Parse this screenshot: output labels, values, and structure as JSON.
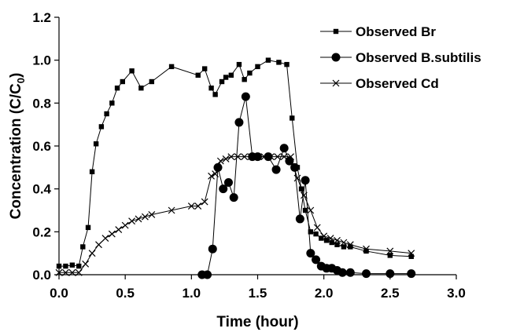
{
  "chart_data": {
    "type": "line",
    "title": "",
    "xlabel": "Time (hour)",
    "ylabel_main": "Concentration (C/C",
    "ylabel_sub": "0",
    "ylabel_end": ")",
    "xlim": [
      0.0,
      3.0
    ],
    "ylim": [
      0.0,
      1.2
    ],
    "xticks": [
      "0.0",
      "0.5",
      "1.0",
      "1.5",
      "2.0",
      "2.5",
      "3.0"
    ],
    "yticks": [
      "0.0",
      "0.2",
      "0.4",
      "0.6",
      "0.8",
      "1.0",
      "1.2"
    ],
    "legend_placement": "top-right",
    "series": [
      {
        "name": "Observed Br",
        "marker": "square",
        "x": [
          0.0,
          0.05,
          0.1,
          0.15,
          0.18,
          0.22,
          0.25,
          0.28,
          0.32,
          0.36,
          0.4,
          0.44,
          0.48,
          0.55,
          0.62,
          0.7,
          0.85,
          1.05,
          1.1,
          1.15,
          1.18,
          1.23,
          1.26,
          1.3,
          1.36,
          1.4,
          1.44,
          1.5,
          1.58,
          1.66,
          1.72,
          1.76,
          1.8,
          1.83,
          1.86,
          1.9,
          1.94,
          1.98,
          2.02,
          2.06,
          2.1,
          2.15,
          2.2,
          2.32,
          2.5,
          2.66
        ],
        "y": [
          0.04,
          0.04,
          0.045,
          0.04,
          0.13,
          0.22,
          0.48,
          0.61,
          0.69,
          0.75,
          0.8,
          0.87,
          0.9,
          0.95,
          0.87,
          0.9,
          0.97,
          0.93,
          0.96,
          0.87,
          0.84,
          0.9,
          0.92,
          0.93,
          0.98,
          0.91,
          0.94,
          0.97,
          1.0,
          0.99,
          0.98,
          0.73,
          0.5,
          0.4,
          0.3,
          0.2,
          0.19,
          0.17,
          0.16,
          0.15,
          0.14,
          0.13,
          0.13,
          0.11,
          0.09,
          0.085
        ],
        "y_alt_note": ""
      }
    ]
  }
}
